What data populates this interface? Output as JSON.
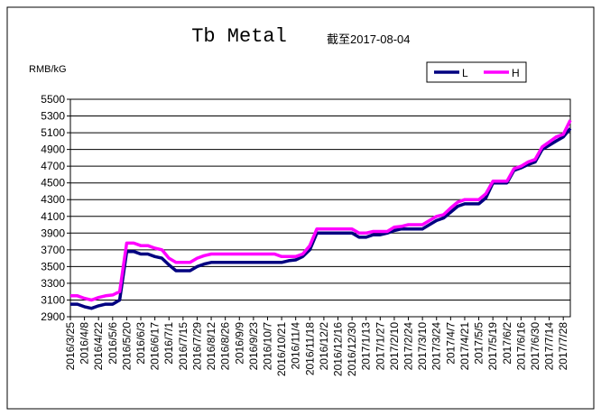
{
  "chart_data": {
    "type": "line",
    "title": "Tb Metal",
    "subtitle": "截至2017-08-04",
    "y_label": "RMB/kG",
    "categories": [
      "2016/3/25",
      null,
      "2016/4/8",
      null,
      "2016/4/22",
      null,
      "2016/5/6",
      null,
      "2016/5/20",
      null,
      "2016/6/3",
      null,
      "2016/6/17",
      null,
      "2016/7/1",
      null,
      "2016/7/15",
      null,
      "2016/7/29",
      null,
      "2016/8/12",
      null,
      "2016/8/26",
      null,
      "2016/9/9",
      null,
      "2016/9/23",
      null,
      "2016/10/7",
      null,
      "2016/10/21",
      null,
      "2016/11/4",
      null,
      "2016/11/18",
      null,
      "2016/12/2",
      null,
      "2016/12/16",
      null,
      "2016/12/30",
      null,
      "2017/1/13",
      null,
      "2017/1/27",
      null,
      "2017/2/10",
      null,
      "2017/2/24",
      null,
      "2017/3/10",
      null,
      "2017/3/24",
      null,
      "2017/4/7",
      null,
      "2017/4/21",
      null,
      "2017/5/5",
      null,
      "2017/5/19",
      null,
      "2017/6/2",
      null,
      "2017/6/16",
      null,
      "2017/6/30",
      null,
      "2017/7/14",
      null,
      "2017/7/28",
      null
    ],
    "series": [
      {
        "name": "L",
        "color": "#000080",
        "values": [
          3050,
          3050,
          3020,
          3000,
          3030,
          3050,
          3050,
          3100,
          3680,
          3680,
          3650,
          3650,
          3620,
          3600,
          3520,
          3450,
          3450,
          3450,
          3500,
          3530,
          3550,
          3550,
          3550,
          3550,
          3550,
          3550,
          3550,
          3550,
          3550,
          3550,
          3550,
          3570,
          3580,
          3620,
          3700,
          3900,
          3900,
          3900,
          3900,
          3900,
          3900,
          3850,
          3850,
          3880,
          3880,
          3900,
          3930,
          3950,
          3950,
          3950,
          3950,
          4000,
          4050,
          4080,
          4150,
          4220,
          4250,
          4250,
          4250,
          4320,
          4500,
          4500,
          4500,
          4650,
          4680,
          4720,
          4750,
          4900,
          4950,
          5000,
          5050,
          5150
        ]
      },
      {
        "name": "H",
        "color": "#ff00ff",
        "values": [
          3150,
          3150,
          3120,
          3100,
          3130,
          3150,
          3160,
          3200,
          3780,
          3780,
          3750,
          3750,
          3720,
          3700,
          3600,
          3550,
          3550,
          3550,
          3600,
          3630,
          3650,
          3650,
          3650,
          3650,
          3650,
          3650,
          3650,
          3650,
          3650,
          3650,
          3620,
          3620,
          3620,
          3650,
          3750,
          3950,
          3950,
          3950,
          3950,
          3950,
          3950,
          3900,
          3900,
          3920,
          3920,
          3920,
          3970,
          3980,
          4000,
          4000,
          4000,
          4050,
          4100,
          4120,
          4200,
          4270,
          4300,
          4300,
          4300,
          4370,
          4520,
          4520,
          4520,
          4670,
          4700,
          4750,
          4780,
          4930,
          4990,
          5050,
          5080,
          5250
        ]
      }
    ],
    "ylim": [
      2900,
      5500
    ],
    "yticks": [
      2900,
      3100,
      3300,
      3500,
      3700,
      3900,
      4100,
      4300,
      4500,
      4700,
      4900,
      5100,
      5300,
      5500
    ],
    "grid": true,
    "legend": "top-right"
  }
}
